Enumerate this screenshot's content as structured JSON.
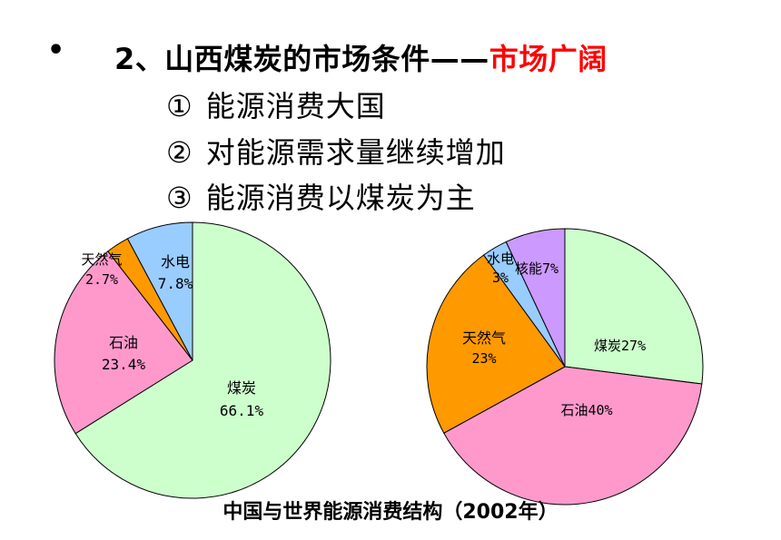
{
  "slide": {
    "bullet": "•",
    "heading_prefix": "2、山西煤炭的市场条件——",
    "heading_highlight": "市场广阔",
    "points": [
      {
        "num": "①",
        "text": "能源消费大国"
      },
      {
        "num": "②",
        "text": "对能源需求量继续增加"
      },
      {
        "num": "③",
        "text": "能源消费以煤炭为主"
      }
    ],
    "caption": "中国与世界能源消费结构（2002年）"
  },
  "colors": {
    "coal": "#ccffcc",
    "oil": "#ff99cc",
    "gas": "#ff9900",
    "hydro": "#99ccff",
    "nuclear": "#cc99ff",
    "highlight": "#ff0000"
  },
  "chart_data": [
    {
      "type": "pie",
      "slices": [
        {
          "name": "煤炭",
          "value": 66.1,
          "label": "66.1%",
          "color": "#ccffcc"
        },
        {
          "name": "石油",
          "value": 23.4,
          "label": "23.4%",
          "color": "#ff99cc"
        },
        {
          "name": "天然气",
          "value": 2.7,
          "label": "2.7%",
          "color": "#ff9900"
        },
        {
          "name": "水电",
          "value": 7.8,
          "label": "7.8%",
          "color": "#99ccff"
        }
      ]
    },
    {
      "type": "pie",
      "slices": [
        {
          "name": "煤炭",
          "value": 27,
          "label": "27%",
          "color": "#ccffcc"
        },
        {
          "name": "石油",
          "value": 40,
          "label": "40%",
          "color": "#ff99cc"
        },
        {
          "name": "天然气",
          "value": 23,
          "label": "23%",
          "color": "#ff9900"
        },
        {
          "name": "水电",
          "value": 3,
          "label": "3%",
          "color": "#99ccff"
        },
        {
          "name": "核能",
          "value": 7,
          "label": "7%",
          "color": "#cc99ff"
        }
      ]
    }
  ]
}
